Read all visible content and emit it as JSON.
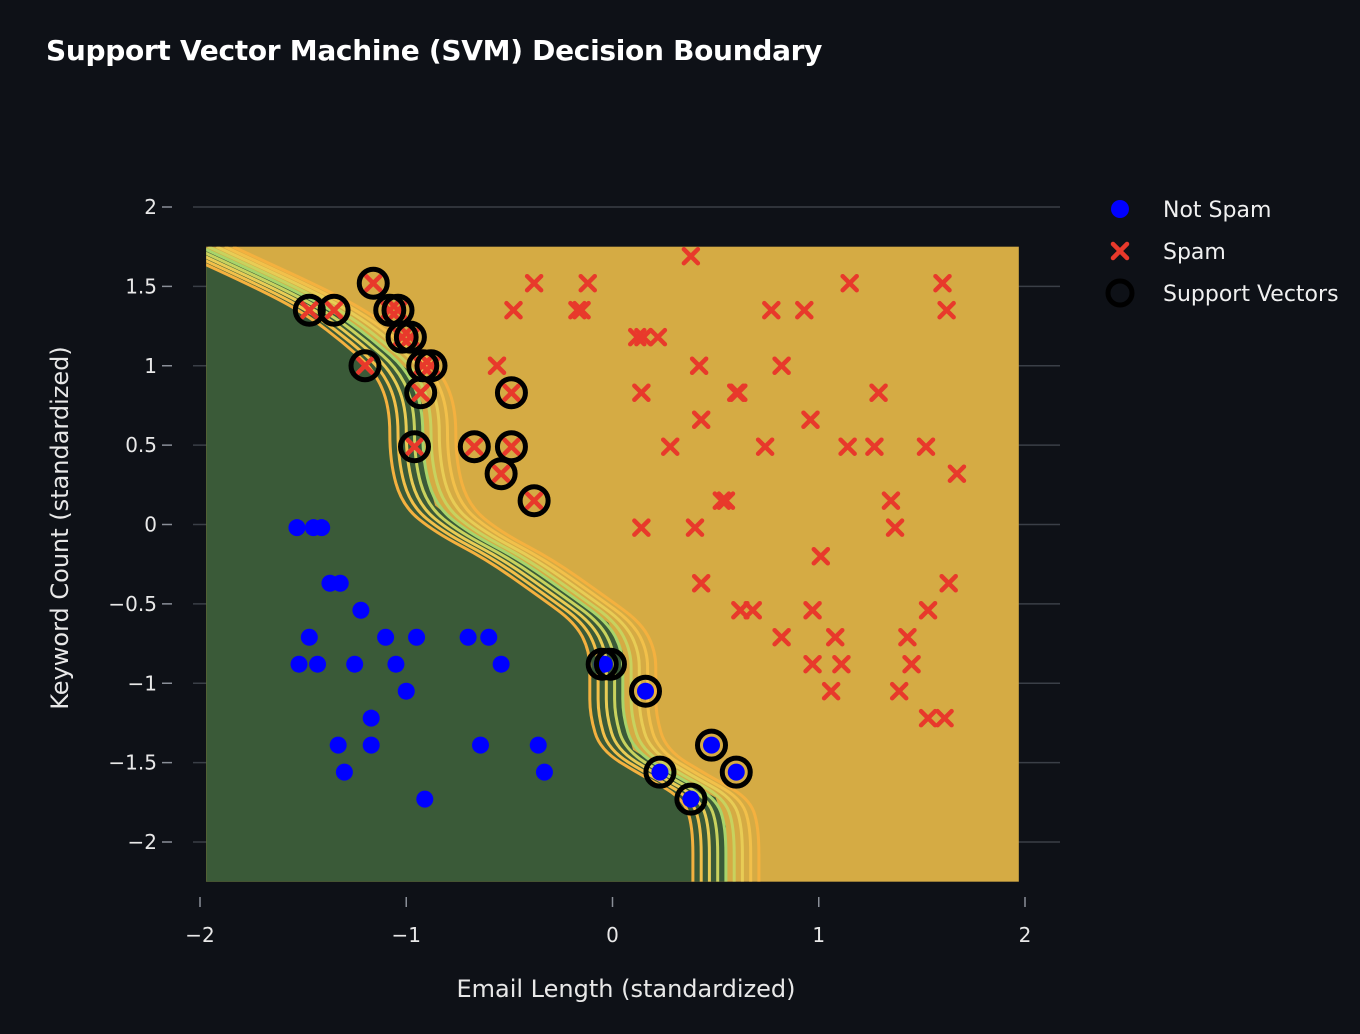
{
  "chart_data": {
    "type": "scatter",
    "title": "Support Vector Machine (SVM) Decision Boundary",
    "xlabel": "Email Length (standardized)",
    "ylabel": "Keyword Count (standardized)",
    "xlim": [
      -2,
      2
    ],
    "ylim": [
      -2.2,
      2.2
    ],
    "region_x": [
      -1.97,
      1.97
    ],
    "region_y": [
      -2.25,
      1.75
    ],
    "xticks": [
      -2,
      -1,
      0,
      1,
      2
    ],
    "xtick_labels": [
      "−2",
      "−1",
      "0",
      "1",
      "2"
    ],
    "yticks": [
      2,
      1.5,
      1,
      0.5,
      0,
      -0.5,
      -1,
      -1.5,
      -2
    ],
    "ytick_labels": [
      "2",
      "1.5",
      "1",
      "0.5",
      "0",
      "−0.5",
      "−1",
      "−1.5",
      "−2"
    ],
    "boundary": [
      [
        -2.0,
        1.75
      ],
      [
        -1.5,
        1.45
      ],
      [
        -1.3,
        1.3
      ],
      [
        -1.15,
        1.15
      ],
      [
        -1.0,
        0.98
      ],
      [
        -0.92,
        0.75
      ],
      [
        -0.92,
        0.4
      ],
      [
        -0.86,
        0.12
      ],
      [
        -0.7,
        -0.05
      ],
      [
        -0.45,
        -0.22
      ],
      [
        -0.2,
        -0.45
      ],
      [
        -0.02,
        -0.62
      ],
      [
        0.05,
        -0.8
      ],
      [
        0.05,
        -1.0
      ],
      [
        0.05,
        -1.2
      ],
      [
        0.1,
        -1.42
      ],
      [
        0.3,
        -1.58
      ],
      [
        0.5,
        -1.72
      ],
      [
        0.55,
        -1.9
      ],
      [
        0.55,
        -2.25
      ]
    ],
    "margin_offsets": [
      -0.16,
      -0.12,
      -0.08,
      -0.04,
      0,
      0.04,
      0.08,
      0.12,
      0.16
    ],
    "series": [
      {
        "name": "Not Spam",
        "x": [
          -1.53,
          -1.45,
          -1.41,
          -1.37,
          -1.32,
          -1.22,
          -1.47,
          -1.52,
          -1.43,
          -1.25,
          -1.1,
          -1.05,
          -0.95,
          -0.7,
          -0.6,
          -0.54,
          -1.0,
          -1.17,
          -1.17,
          -1.33,
          -1.3,
          -0.91,
          -0.64,
          -0.36,
          -0.33,
          -0.05,
          -0.04,
          0.16,
          0.23,
          0.38,
          0.48,
          0.6
        ],
        "y": [
          -0.02,
          -0.02,
          -0.02,
          -0.37,
          -0.37,
          -0.54,
          -0.71,
          -0.88,
          -0.88,
          -0.88,
          -0.71,
          -0.88,
          -0.71,
          -0.71,
          -0.71,
          -0.88,
          -1.05,
          -1.22,
          -1.39,
          -1.39,
          -1.56,
          -1.73,
          -1.39,
          -1.39,
          -1.56,
          -0.88,
          -0.88,
          -1.05,
          -1.56,
          -1.73,
          -1.39,
          -1.56
        ]
      },
      {
        "name": "Spam",
        "x": [
          -1.47,
          -1.35,
          -1.16,
          -1.08,
          -1.04,
          -1.02,
          -0.98,
          -1.2,
          -0.92,
          -0.88,
          -0.93,
          -0.49,
          -0.96,
          -0.67,
          -0.49,
          -0.54,
          -0.38,
          -0.38,
          -0.48,
          -0.17,
          -0.15,
          -0.12,
          -0.56,
          0.12,
          0.15,
          0.22,
          0.14,
          0.28,
          0.38,
          0.42,
          0.43,
          0.6,
          0.61,
          0.74,
          0.77,
          0.82,
          0.93,
          0.96,
          1.15,
          1.29,
          1.14,
          1.6,
          1.62,
          1.27,
          1.52,
          1.67,
          0.14,
          0.4,
          0.55,
          0.53,
          0.43,
          0.62,
          0.68,
          0.97,
          1.01,
          1.08,
          1.11,
          1.35,
          1.37,
          1.63,
          1.53,
          1.43,
          0.82,
          0.97,
          1.06,
          1.45,
          1.39,
          1.53,
          1.61
        ],
        "y": [
          1.35,
          1.35,
          1.52,
          1.35,
          1.35,
          1.18,
          1.18,
          1.0,
          1.0,
          1.0,
          0.83,
          0.83,
          0.49,
          0.49,
          0.49,
          0.32,
          0.15,
          1.52,
          1.35,
          1.35,
          1.35,
          1.52,
          1.0,
          1.18,
          1.18,
          1.18,
          0.83,
          0.49,
          1.69,
          1.0,
          0.66,
          0.83,
          0.83,
          0.49,
          1.35,
          1.0,
          1.35,
          0.66,
          1.52,
          0.83,
          0.49,
          1.52,
          1.35,
          0.49,
          0.49,
          0.32,
          -0.02,
          -0.02,
          0.15,
          0.15,
          -0.37,
          -0.54,
          -0.54,
          -0.54,
          -0.2,
          -0.71,
          -0.88,
          0.15,
          -0.02,
          -0.37,
          -0.54,
          -0.71,
          -0.71,
          -0.88,
          -1.05,
          -0.88,
          -1.05,
          -1.22,
          -1.22
        ]
      },
      {
        "name": "Support Vectors",
        "x": [
          -1.47,
          -1.35,
          -1.16,
          -1.08,
          -1.04,
          -1.02,
          -0.98,
          -1.2,
          -0.92,
          -0.88,
          -0.93,
          -0.49,
          -0.96,
          -0.67,
          -0.49,
          -0.54,
          -0.38,
          -0.05,
          -0.01,
          0.16,
          0.23,
          0.38,
          0.48,
          0.6
        ],
        "y": [
          1.35,
          1.35,
          1.52,
          1.35,
          1.35,
          1.18,
          1.18,
          1.0,
          1.0,
          1.0,
          0.83,
          0.83,
          0.49,
          0.49,
          0.49,
          0.32,
          0.15,
          -0.88,
          -0.88,
          -1.05,
          -1.56,
          -1.73,
          -1.39,
          -1.56
        ]
      }
    ],
    "legend": [
      "Not Spam",
      "Spam",
      "Support Vectors"
    ],
    "colors": {
      "not_spam": "#0000ff",
      "spam": "#e8392b",
      "support_vector": "#000000",
      "region_not_spam": "#3a5a38",
      "region_spam": "#d5ab44",
      "margin_lines": [
        "#f4b13f",
        "#f2c04a",
        "#e8cc55",
        "#c8d25e",
        "#a8d46a",
        "#c8d25e",
        "#e8cc55",
        "#f2c04a",
        "#f4b13f"
      ],
      "grid": "#3a3f47",
      "background": "#0e1117"
    },
    "legend_position": "top-right"
  }
}
